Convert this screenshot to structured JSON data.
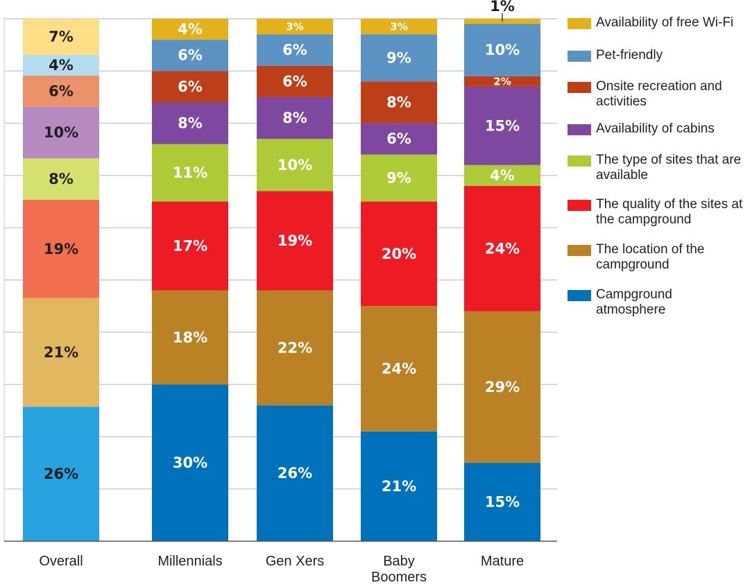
{
  "chart_data": {
    "type": "bar",
    "stacked": true,
    "categories": [
      "Overall",
      "Millennials",
      "Gen Xers",
      "Baby Boomers",
      "Mature"
    ],
    "category_lines": [
      [
        "Overall"
      ],
      [
        "Millennials"
      ],
      [
        "Gen Xers"
      ],
      [
        "Baby",
        "Boomers"
      ],
      [
        "Mature"
      ]
    ],
    "ylim": [
      0,
      100
    ],
    "grid": true,
    "legend_position": "right",
    "series": [
      {
        "name": "Campground atmosphere",
        "color": "#0072bc",
        "overall_color": "#29a3df",
        "values": [
          26,
          30,
          26,
          21,
          15
        ],
        "labels": [
          "26%",
          "30%",
          "26%",
          "21%",
          "15%"
        ]
      },
      {
        "name": "The location of the campground",
        "color": "#bb8225",
        "overall_color": "#e1b860",
        "values": [
          21,
          18,
          22,
          24,
          29
        ],
        "labels": [
          "21%",
          "18%",
          "22%",
          "24%",
          "29%"
        ]
      },
      {
        "name": "The quality of the sites at the campground",
        "color": "#ed1c24",
        "overall_color": "#f26f51",
        "values": [
          19,
          17,
          19,
          20,
          24
        ],
        "labels": [
          "19%",
          "17%",
          "19%",
          "20%",
          "24%"
        ]
      },
      {
        "name": "The type of sites that are available",
        "color": "#afca37",
        "overall_color": "#d5e16e",
        "values": [
          8,
          11,
          10,
          9,
          4
        ],
        "labels": [
          "8%",
          "11%",
          "10%",
          "9%",
          "4%"
        ]
      },
      {
        "name": "Availability of cabins",
        "color": "#7f48a0",
        "overall_color": "#b48ac1",
        "values": [
          10,
          8,
          8,
          6,
          15
        ],
        "labels": [
          "10%",
          "8%",
          "8%",
          "6%",
          "15%"
        ]
      },
      {
        "name": "Onsite recreation and activities",
        "color": "#bc3f1a",
        "overall_color": "#ec926b",
        "values": [
          6,
          6,
          6,
          8,
          2
        ],
        "labels": [
          "6%",
          "6%",
          "6%",
          "8%",
          "2%"
        ]
      },
      {
        "name": "Pet-friendly",
        "color": "#5a92c4",
        "overall_color": "#b2dcef",
        "values": [
          4,
          6,
          6,
          9,
          10
        ],
        "labels": [
          "4%",
          "6%",
          "6%",
          "9%",
          "10%"
        ]
      },
      {
        "name": "Availability of free Wi-Fi",
        "color": "#e5b11a",
        "overall_color": "#fede86",
        "values": [
          7,
          4,
          3,
          3,
          1
        ],
        "labels": [
          "7%",
          "4%",
          "3%",
          "3%",
          "1%"
        ]
      }
    ],
    "legend": [
      {
        "text": "Availability of free Wi-Fi",
        "color": "#e5b11a"
      },
      {
        "text": "Pet-friendly",
        "color": "#5a92c4"
      },
      {
        "text": "Onsite recreation and activities",
        "color": "#bc3f1a"
      },
      {
        "text": "Availability of cabins",
        "color": "#7f48a0"
      },
      {
        "text": "The type of sites that are available",
        "color": "#afca37"
      },
      {
        "text": "The quality of the sites at the campground",
        "color": "#ed1c24"
      },
      {
        "text": "The location of the campground",
        "color": "#bb8225"
      },
      {
        "text": "Campground atmosphere",
        "color": "#0072bc"
      }
    ]
  }
}
